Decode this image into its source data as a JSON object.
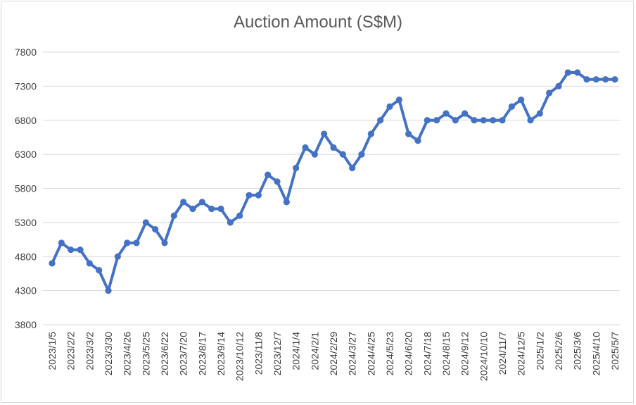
{
  "chart_data": {
    "type": "line",
    "title": "Auction Amount (S$M)",
    "xlabel": "",
    "ylabel": "",
    "ylim": [
      3800,
      7800
    ],
    "y_ticks": [
      3800,
      4300,
      4800,
      5300,
      5800,
      6300,
      6800,
      7300,
      7800
    ],
    "x_tick_labels": [
      "2023/1/5",
      "2023/2/2",
      "2023/3/2",
      "2023/3/30",
      "2023/4/26",
      "2023/5/25",
      "2023/6/22",
      "2023/7/20",
      "2023/8/17",
      "2023/9/14",
      "2023/10/12",
      "2023/11/8",
      "2023/12/7",
      "2024/1/4",
      "2024/2/1",
      "2024/2/29",
      "2024/3/27",
      "2024/4/25",
      "2024/5/23",
      "2024/6/20",
      "2024/7/18",
      "2024/8/15",
      "2024/9/12",
      "2024/10/10",
      "2024/11/7",
      "2024/12/5",
      "2025/1/2",
      "2025/2/6",
      "2025/3/6",
      "2025/4/10",
      "2025/5/7"
    ],
    "grid": true,
    "legend": "none",
    "color": "#4472c4",
    "series": [
      {
        "values": [
          4700,
          5000,
          4900,
          4900,
          4700,
          4600,
          4300,
          4800,
          5000,
          5000,
          5300,
          5200,
          5000,
          5400,
          5600,
          5500,
          5600,
          5500,
          5500,
          5300,
          5400,
          5700,
          5700,
          6000,
          5900,
          5600,
          6100,
          6400,
          6300,
          6600,
          6400,
          6300,
          6100,
          6300,
          6600,
          6800,
          7000,
          7100,
          6600,
          6500,
          6800,
          6800,
          6900,
          6800,
          6900,
          6800,
          6800,
          6800,
          6800,
          7000,
          7100,
          6800,
          6900,
          7200,
          7300,
          7500,
          7500,
          7400,
          7400,
          7400,
          7400
        ]
      }
    ]
  }
}
